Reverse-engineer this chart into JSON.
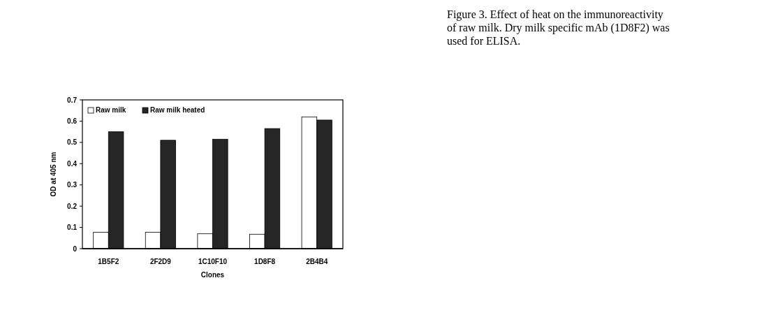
{
  "chart_data": {
    "type": "bar",
    "xlabel": "Clones",
    "ylabel": "OD at 405 nm",
    "categories": [
      "1B5F2",
      "2F2D9",
      "1C10F10",
      "1D8F8",
      "2B4B4"
    ],
    "series": [
      {
        "name": "Raw milk",
        "color": "#ffffff",
        "values": [
          0.077,
          0.077,
          0.07,
          0.068,
          0.62
        ]
      },
      {
        "name": "Raw milk heated",
        "color": "#262626",
        "values": [
          0.55,
          0.51,
          0.515,
          0.565,
          0.605
        ]
      }
    ],
    "ylim": [
      0,
      0.7
    ],
    "yticks": [
      {
        "value": 0,
        "label": "0"
      },
      0.1,
      0.2,
      0.3,
      0.4,
      0.5,
      0.6,
      0.7
    ],
    "legend": "top left",
    "grid": false,
    "annotations": [
      "Figure 3. Effect of heat on the immunoreactivity of raw milk. Dry milk specific mAb (1D8F2) was used for ELISA."
    ]
  }
}
